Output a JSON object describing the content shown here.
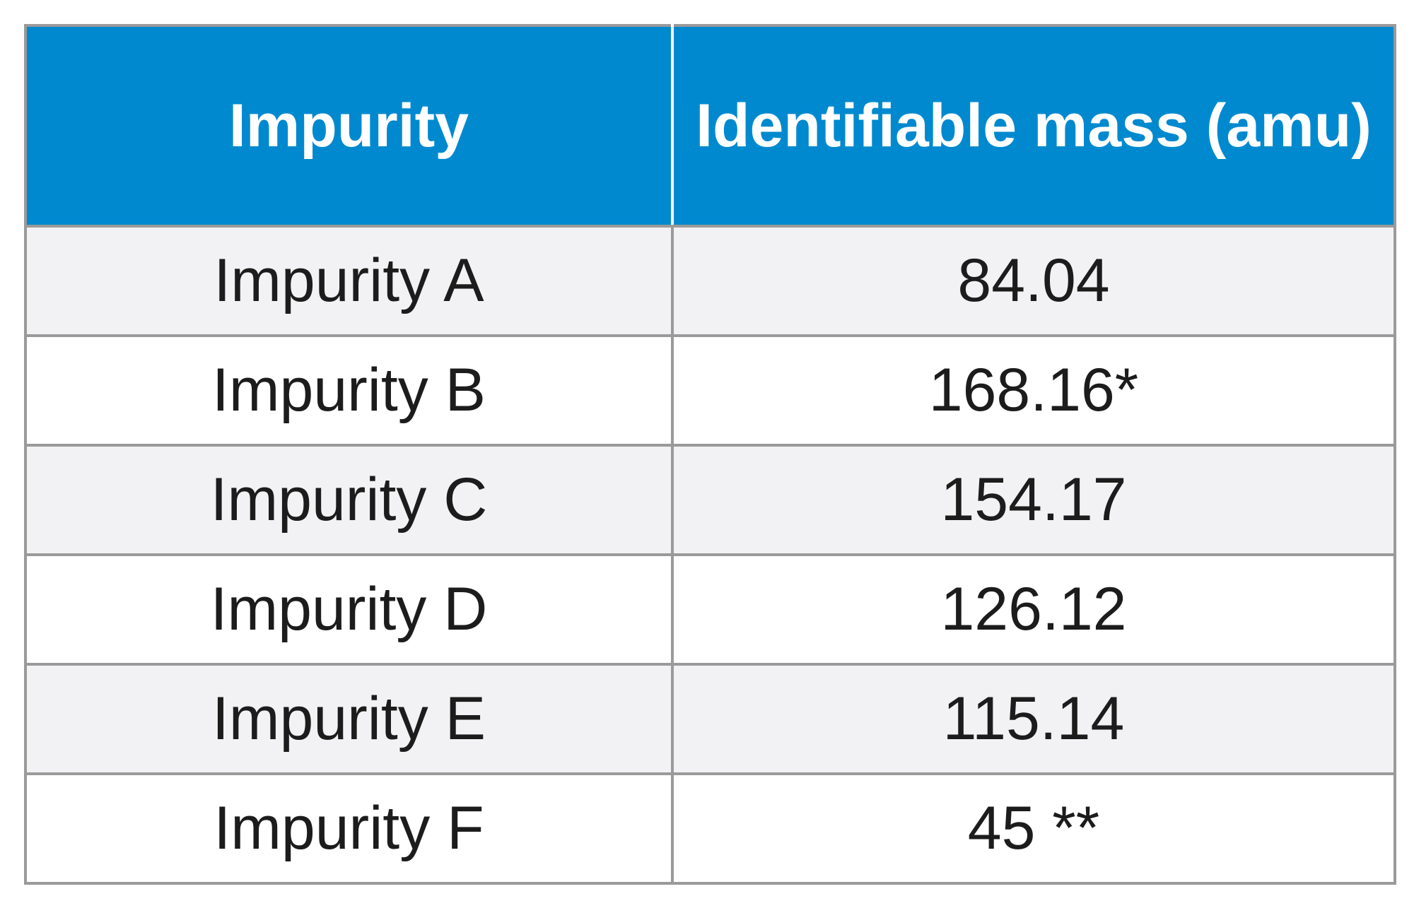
{
  "table": {
    "headers": [
      "Impurity",
      "Identifiable mass (amu)"
    ],
    "rows": [
      [
        "Impurity A",
        "84.04"
      ],
      [
        "Impurity B",
        "168.16*"
      ],
      [
        "Impurity C",
        "154.17"
      ],
      [
        "Impurity D",
        "126.12"
      ],
      [
        "Impurity E",
        "115.14"
      ],
      [
        "Impurity F",
        "45 **"
      ]
    ]
  },
  "colors": {
    "header_bg": "#0089cf",
    "header_text": "#ffffff",
    "row_alt_bg": "#f2f2f4",
    "row_bg": "#ffffff",
    "border": "#9a9a9a"
  }
}
